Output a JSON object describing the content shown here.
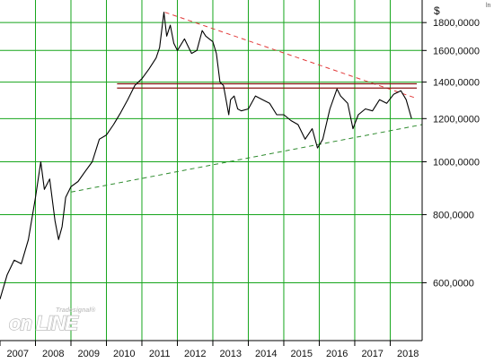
{
  "chart_data": {
    "type": "line",
    "y_scale": "log",
    "currency": "$",
    "scale_indicator": "ln",
    "ylim": [
      470,
      1980
    ],
    "y_ticks": [
      600,
      800,
      1000,
      1200,
      1400,
      1600,
      1800
    ],
    "y_tick_labels": [
      "600,0000",
      "800,0000",
      "1000,0000",
      "1200,0000",
      "1400,0000",
      "1600,0000",
      "1800,0000"
    ],
    "xlim": [
      2007.0,
      2018.9
    ],
    "x_tick_labels": [
      "2007",
      "2008",
      "2009",
      "2010",
      "2011",
      "2012",
      "2013",
      "2014",
      "2015",
      "2016",
      "2017",
      "2018"
    ],
    "grid": true,
    "series": [
      {
        "color": "#000000",
        "x": [
          2007.0,
          2007.2,
          2007.4,
          2007.6,
          2007.8,
          2008.0,
          2008.15,
          2008.25,
          2008.4,
          2008.55,
          2008.65,
          2008.75,
          2008.85,
          2009.0,
          2009.2,
          2009.4,
          2009.6,
          2009.8,
          2010.0,
          2010.2,
          2010.4,
          2010.6,
          2010.8,
          2011.0,
          2011.2,
          2011.4,
          2011.5,
          2011.62,
          2011.7,
          2011.8,
          2011.9,
          2012.0,
          2012.2,
          2012.4,
          2012.55,
          2012.7,
          2012.8,
          2012.9,
          2013.0,
          2013.1,
          2013.2,
          2013.3,
          2013.45,
          2013.5,
          2013.6,
          2013.7,
          2013.8,
          2014.0,
          2014.2,
          2014.4,
          2014.6,
          2014.8,
          2015.0,
          2015.2,
          2015.4,
          2015.6,
          2015.8,
          2015.95,
          2016.1,
          2016.3,
          2016.5,
          2016.6,
          2016.8,
          2016.95,
          2017.1,
          2017.3,
          2017.5,
          2017.7,
          2017.9,
          2018.1,
          2018.3,
          2018.45,
          2018.6
        ],
        "y": [
          560,
          620,
          660,
          650,
          720,
          860,
          1000,
          890,
          930,
          780,
          720,
          760,
          860,
          900,
          920,
          960,
          1000,
          1100,
          1120,
          1170,
          1230,
          1300,
          1380,
          1420,
          1480,
          1550,
          1620,
          1880,
          1700,
          1780,
          1650,
          1600,
          1680,
          1580,
          1600,
          1740,
          1700,
          1680,
          1660,
          1580,
          1400,
          1380,
          1220,
          1300,
          1320,
          1250,
          1240,
          1250,
          1320,
          1300,
          1280,
          1220,
          1220,
          1190,
          1170,
          1100,
          1150,
          1060,
          1100,
          1250,
          1360,
          1320,
          1280,
          1150,
          1220,
          1250,
          1240,
          1300,
          1280,
          1330,
          1350,
          1300,
          1200
        ]
      }
    ],
    "trendlines": [
      {
        "style": "dashed",
        "color": "#e23a3a",
        "x": [
          2011.65,
          2018.7
        ],
        "y": [
          1880,
          1310
        ]
      },
      {
        "style": "dashed",
        "color": "#2e8b2e",
        "x": [
          2009.0,
          2018.9
        ],
        "y": [
          880,
          1170
        ]
      }
    ],
    "hlines": [
      {
        "color": "#8b1414",
        "y": 1390,
        "x": [
          2010.3,
          2018.75
        ]
      },
      {
        "color": "#8b1414",
        "y": 1365,
        "x": [
          2010.3,
          2018.75
        ]
      }
    ],
    "watermark": {
      "small": "Tradesignal®",
      "big": "on LINE"
    }
  }
}
